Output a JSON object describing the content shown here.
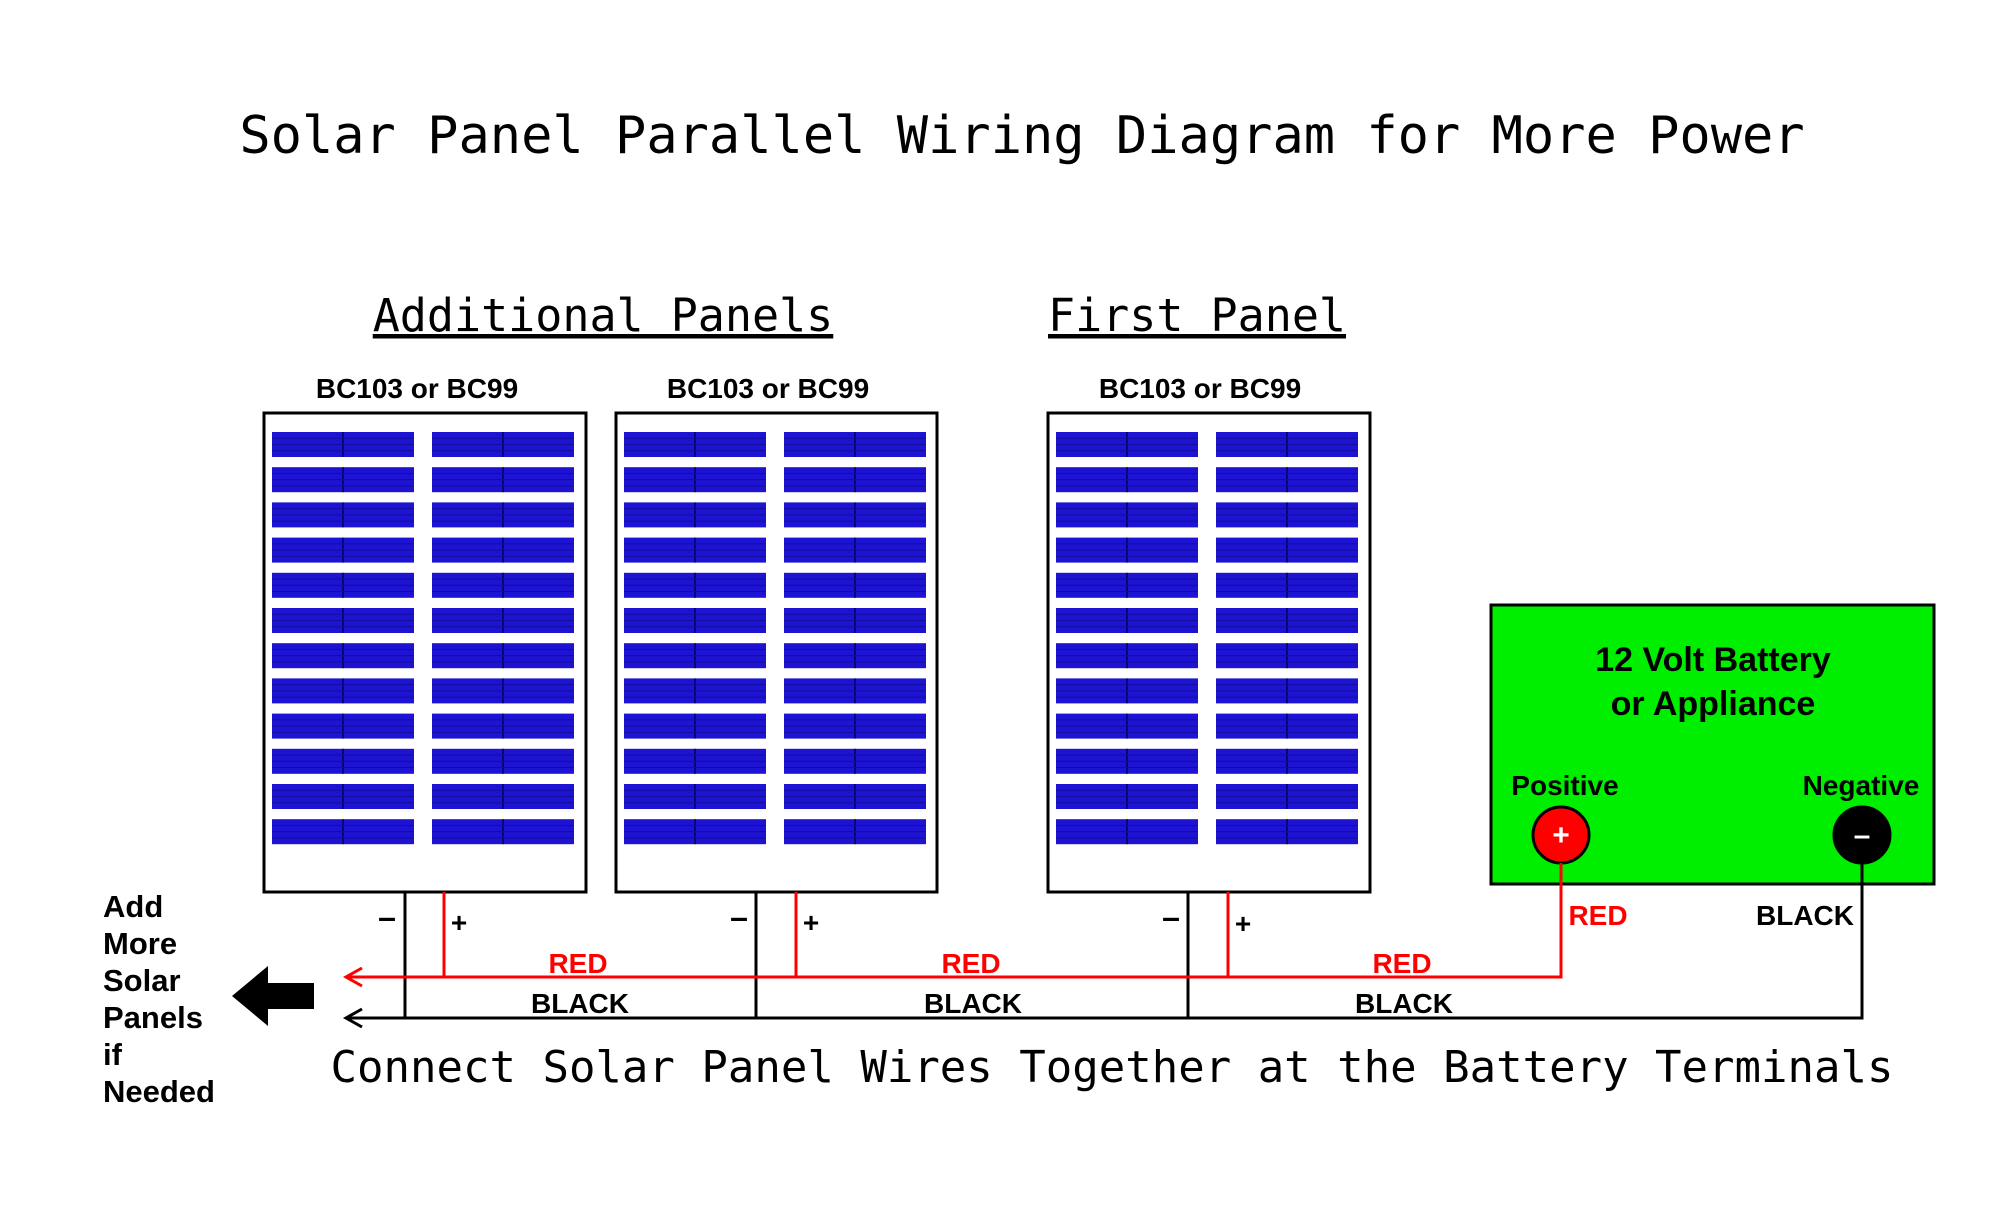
{
  "title": "Solar Panel Parallel Wiring Diagram for More Power",
  "headings": {
    "additional": "Additional Panels",
    "first": "First Panel"
  },
  "panels": [
    {
      "model": "BC103 or BC99",
      "minus": "–",
      "plus": "+"
    },
    {
      "model": "BC103 or BC99",
      "minus": "–",
      "plus": "+"
    },
    {
      "model": "BC103 or BC99",
      "minus": "–",
      "plus": "+"
    }
  ],
  "battery": {
    "line1": "12 Volt Battery",
    "line2": "or Appliance",
    "positive_label": "Positive",
    "negative_label": "Negative",
    "positive_symbol": "+",
    "negative_symbol": "–",
    "positive_wire_label": "RED",
    "negative_wire_label": "BLACK"
  },
  "wires": {
    "red_labels": [
      "RED",
      "RED",
      "RED"
    ],
    "black_labels": [
      "BLACK",
      "BLACK",
      "BLACK"
    ]
  },
  "side_note": [
    "Add",
    "More",
    "Solar",
    "Panels",
    "if",
    "Needed"
  ],
  "footer": "Connect Solar Panel Wires Together at the Battery Terminals",
  "icons": {
    "arrow": "left-arrow-icon"
  },
  "colors": {
    "red": "#ff0000",
    "black": "#000000",
    "battery_fill": "#00ee00",
    "cell_blue": "#1c14d2",
    "terminal_red": "#ff0000"
  }
}
